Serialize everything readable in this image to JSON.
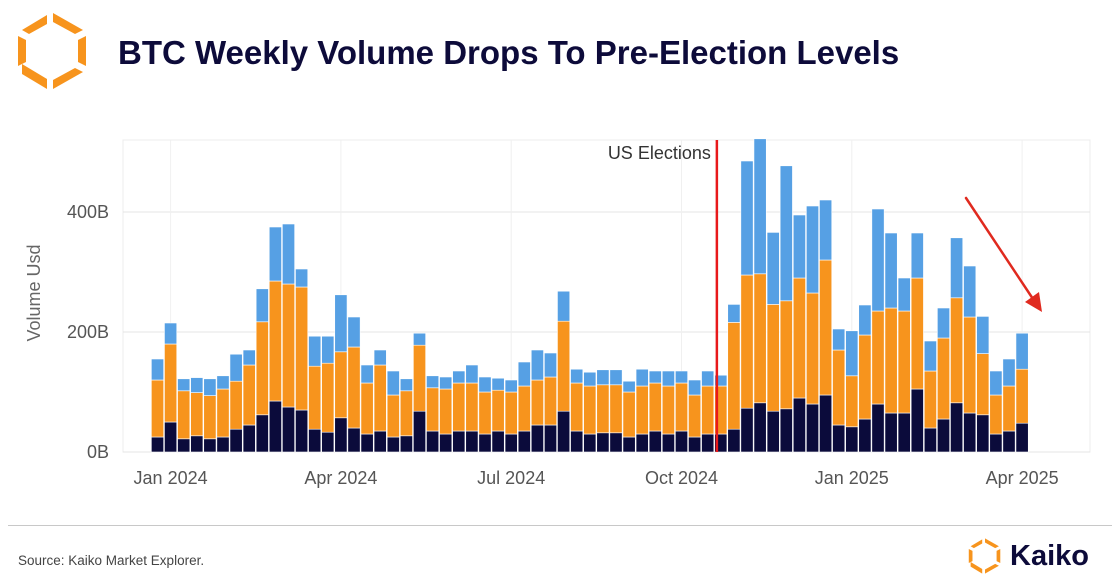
{
  "header": {
    "title": "BTC Weekly Volume Drops To Pre-Election Levels"
  },
  "footer": {
    "source": "Source: Kaiko Market Explorer.",
    "brand": "Kaiko"
  },
  "colors": {
    "title": "#0d0b3a",
    "dark_series": "#0b0b3b",
    "orange_series": "#f7941d",
    "blue_series": "#56a0e4",
    "election_line": "#e8191b",
    "arrow": "#e02a1f",
    "logo_orange": "#f7941d"
  },
  "icons": {
    "logo": "kaiko-logo-icon",
    "trend_arrow": "down-right-arrow-icon"
  },
  "chart_data": {
    "type": "bar",
    "stacked": true,
    "ylabel": "Volume Usd",
    "ylim": [
      0,
      520
    ],
    "yticks": [
      0,
      200,
      400
    ],
    "ytick_labels": [
      "0B",
      "200B",
      "400B"
    ],
    "xtick_labels": [
      "Jan 2024",
      "Apr 2024",
      "Jul 2024",
      "Oct 2024",
      "Jan 2025",
      "Apr 2025"
    ],
    "xtick_week_index": [
      1,
      14,
      27,
      40,
      53,
      66
    ],
    "grid": true,
    "annotations": [
      {
        "text": "US Elections",
        "type": "vertical-line",
        "week_index": 42.7
      },
      {
        "text": "",
        "type": "arrow",
        "direction": "down-right"
      }
    ],
    "units": "B USD",
    "series": [
      {
        "values": [
          25,
          50,
          22,
          27,
          22,
          25,
          38,
          45,
          62,
          85,
          75,
          70,
          38,
          33,
          57,
          40,
          30,
          35,
          25,
          27,
          68,
          35,
          30,
          35,
          35,
          30,
          35,
          30,
          35,
          45,
          45,
          68,
          35,
          30,
          32,
          32,
          25,
          30,
          35,
          30,
          35,
          25,
          30,
          30,
          38,
          73,
          82,
          68,
          72,
          90,
          80,
          95,
          45,
          42,
          55,
          80,
          65,
          65,
          105,
          40,
          55,
          82,
          65,
          62,
          30,
          35,
          48
        ]
      },
      {
        "values": [
          95,
          130,
          80,
          72,
          72,
          80,
          80,
          100,
          155,
          200,
          205,
          205,
          105,
          115,
          110,
          135,
          85,
          110,
          70,
          75,
          110,
          72,
          75,
          80,
          80,
          70,
          68,
          70,
          75,
          75,
          80,
          150,
          80,
          80,
          80,
          80,
          75,
          80,
          80,
          80,
          80,
          70,
          80,
          80,
          178,
          222,
          215,
          178,
          180,
          200,
          185,
          225,
          125,
          85,
          140,
          155,
          175,
          170,
          185,
          95,
          135,
          175,
          160,
          102,
          65,
          75,
          90
        ]
      },
      {
        "values": [
          35,
          35,
          20,
          25,
          28,
          22,
          45,
          25,
          55,
          90,
          100,
          30,
          50,
          45,
          95,
          50,
          30,
          25,
          40,
          20,
          20,
          20,
          20,
          20,
          30,
          25,
          20,
          20,
          40,
          50,
          40,
          50,
          23,
          23,
          25,
          25,
          18,
          28,
          20,
          25,
          20,
          25,
          25,
          18,
          30,
          190,
          225,
          120,
          225,
          105,
          145,
          100,
          35,
          75,
          50,
          170,
          125,
          55,
          75,
          50,
          50,
          100,
          85,
          62,
          40,
          45,
          60
        ]
      }
    ],
    "series_colors": [
      "#0b0b3b",
      "#f7941d",
      "#56a0e4"
    ]
  }
}
